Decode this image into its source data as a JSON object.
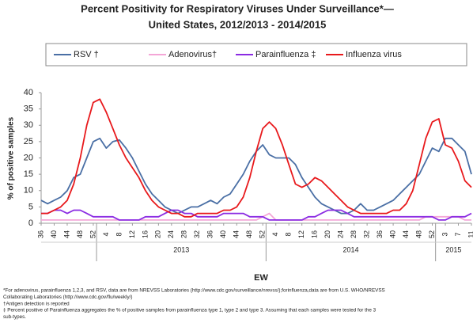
{
  "chart_data": {
    "type": "line",
    "title": [
      "Percent Positivity for Respiratory Viruses Under Surveillance*—",
      "United States, 2012/2013 - 2014/2015"
    ],
    "ylabel": "% of positive samples",
    "xlabel": "EW",
    "categories": [
      "36",
      null,
      "40",
      null,
      "44",
      null,
      "48",
      null,
      "52",
      null,
      "4",
      null,
      "8",
      null,
      "12",
      null,
      "16",
      null,
      "20",
      null,
      "24",
      null,
      "28",
      null,
      "32",
      null,
      "36",
      null,
      "40",
      null,
      "44",
      null,
      "48",
      null,
      "52",
      null,
      "4",
      null,
      "8",
      null,
      "12",
      null,
      "16",
      null,
      "20",
      null,
      "24",
      null,
      "28",
      null,
      "32",
      null,
      "36",
      null,
      "40",
      null,
      "44",
      null,
      "48",
      null,
      "52",
      null,
      "3",
      null,
      "7",
      null,
      "11"
    ],
    "years": [
      null,
      "2013",
      "2014",
      "2015"
    ],
    "ylim": [
      0,
      40
    ],
    "yticks": [
      0,
      5,
      10,
      15,
      20,
      25,
      30,
      35,
      40
    ],
    "grid": false,
    "series": [
      {
        "name": "RSV †",
        "color": "#4a6fa5",
        "values": [
          7,
          6,
          7,
          8,
          10,
          14,
          15,
          20,
          25,
          26,
          23,
          25,
          25.5,
          23,
          20,
          16,
          12,
          9,
          7,
          5,
          4,
          3,
          4,
          5,
          5,
          6,
          7,
          6,
          8,
          9,
          12,
          15,
          19,
          22,
          24,
          21,
          20,
          20,
          20,
          18,
          14,
          11,
          8,
          6,
          5,
          4,
          3,
          3,
          4,
          6,
          4,
          4,
          5,
          6,
          7,
          9,
          11,
          13,
          15,
          19,
          23,
          22,
          26,
          26,
          24,
          22,
          15
        ]
      },
      {
        "name": "Adenovirus†",
        "color": "#f4a6d7",
        "values": [
          1,
          1,
          1,
          1,
          1,
          1,
          1,
          1,
          1,
          1,
          1,
          1,
          1,
          1,
          1,
          1,
          1,
          1,
          1,
          1,
          1,
          1,
          1,
          1,
          1,
          1,
          1,
          1,
          1,
          1,
          1,
          1,
          1,
          1,
          2,
          3,
          1,
          1,
          1,
          1,
          1,
          1,
          1,
          1,
          1,
          1,
          1,
          1,
          1,
          1,
          1,
          1,
          1,
          1,
          1,
          1,
          1,
          1,
          1,
          2,
          2,
          2,
          2,
          2,
          2,
          1,
          1
        ]
      },
      {
        "name": "Parainfluenza ‡",
        "color": "#8b2be2",
        "values": [
          3,
          3,
          4,
          4,
          3,
          4,
          4,
          3,
          2,
          2,
          2,
          2,
          1,
          1,
          1,
          1,
          2,
          2,
          2,
          3,
          4,
          4,
          3,
          3,
          2,
          2,
          2,
          2,
          3,
          3,
          3,
          3,
          2,
          2,
          2,
          1,
          1,
          1,
          1,
          1,
          1,
          2,
          2,
          3,
          4,
          4,
          4,
          3,
          2,
          2,
          2,
          2,
          2,
          2,
          2,
          2,
          2,
          2,
          2,
          2,
          2,
          1,
          1,
          2,
          2,
          2,
          3
        ]
      },
      {
        "name": "Influenza virus",
        "color": "#e8191c",
        "values": [
          3,
          3,
          4,
          5,
          7,
          12,
          20,
          30,
          37,
          38,
          34,
          29,
          24,
          20,
          17,
          14,
          10,
          7,
          5,
          4,
          3,
          3,
          2,
          2,
          3,
          3,
          3,
          3,
          4,
          4,
          5,
          8,
          14,
          22,
          29,
          31,
          29,
          24,
          18,
          12,
          11,
          12,
          14,
          13,
          11,
          9,
          7,
          5,
          4,
          3,
          3,
          3,
          3,
          3,
          4,
          4,
          6,
          10,
          18,
          26,
          31,
          32,
          24,
          23,
          19,
          13,
          11
        ]
      }
    ],
    "footnotes": [
      "*For adenovirus, parainfluenza 1,2,3, and RSV, data are from NREVSS Laboratories (http://www.cdc.gov/surveillance/nrevss/);forinfluenza,data are from U.S. WHO/NREVSS",
      "Collaborating Laboratories (http://www.cdc.gov/flu/weekly/)",
      "†Antigen detection is reported",
      "‡ Percent positive of Parainfluenza aggregates the % of positive samples from parainfluenza type 1, type 2 and type 3. Assuming that each samples were tested for the 3",
      "sub-types."
    ]
  }
}
